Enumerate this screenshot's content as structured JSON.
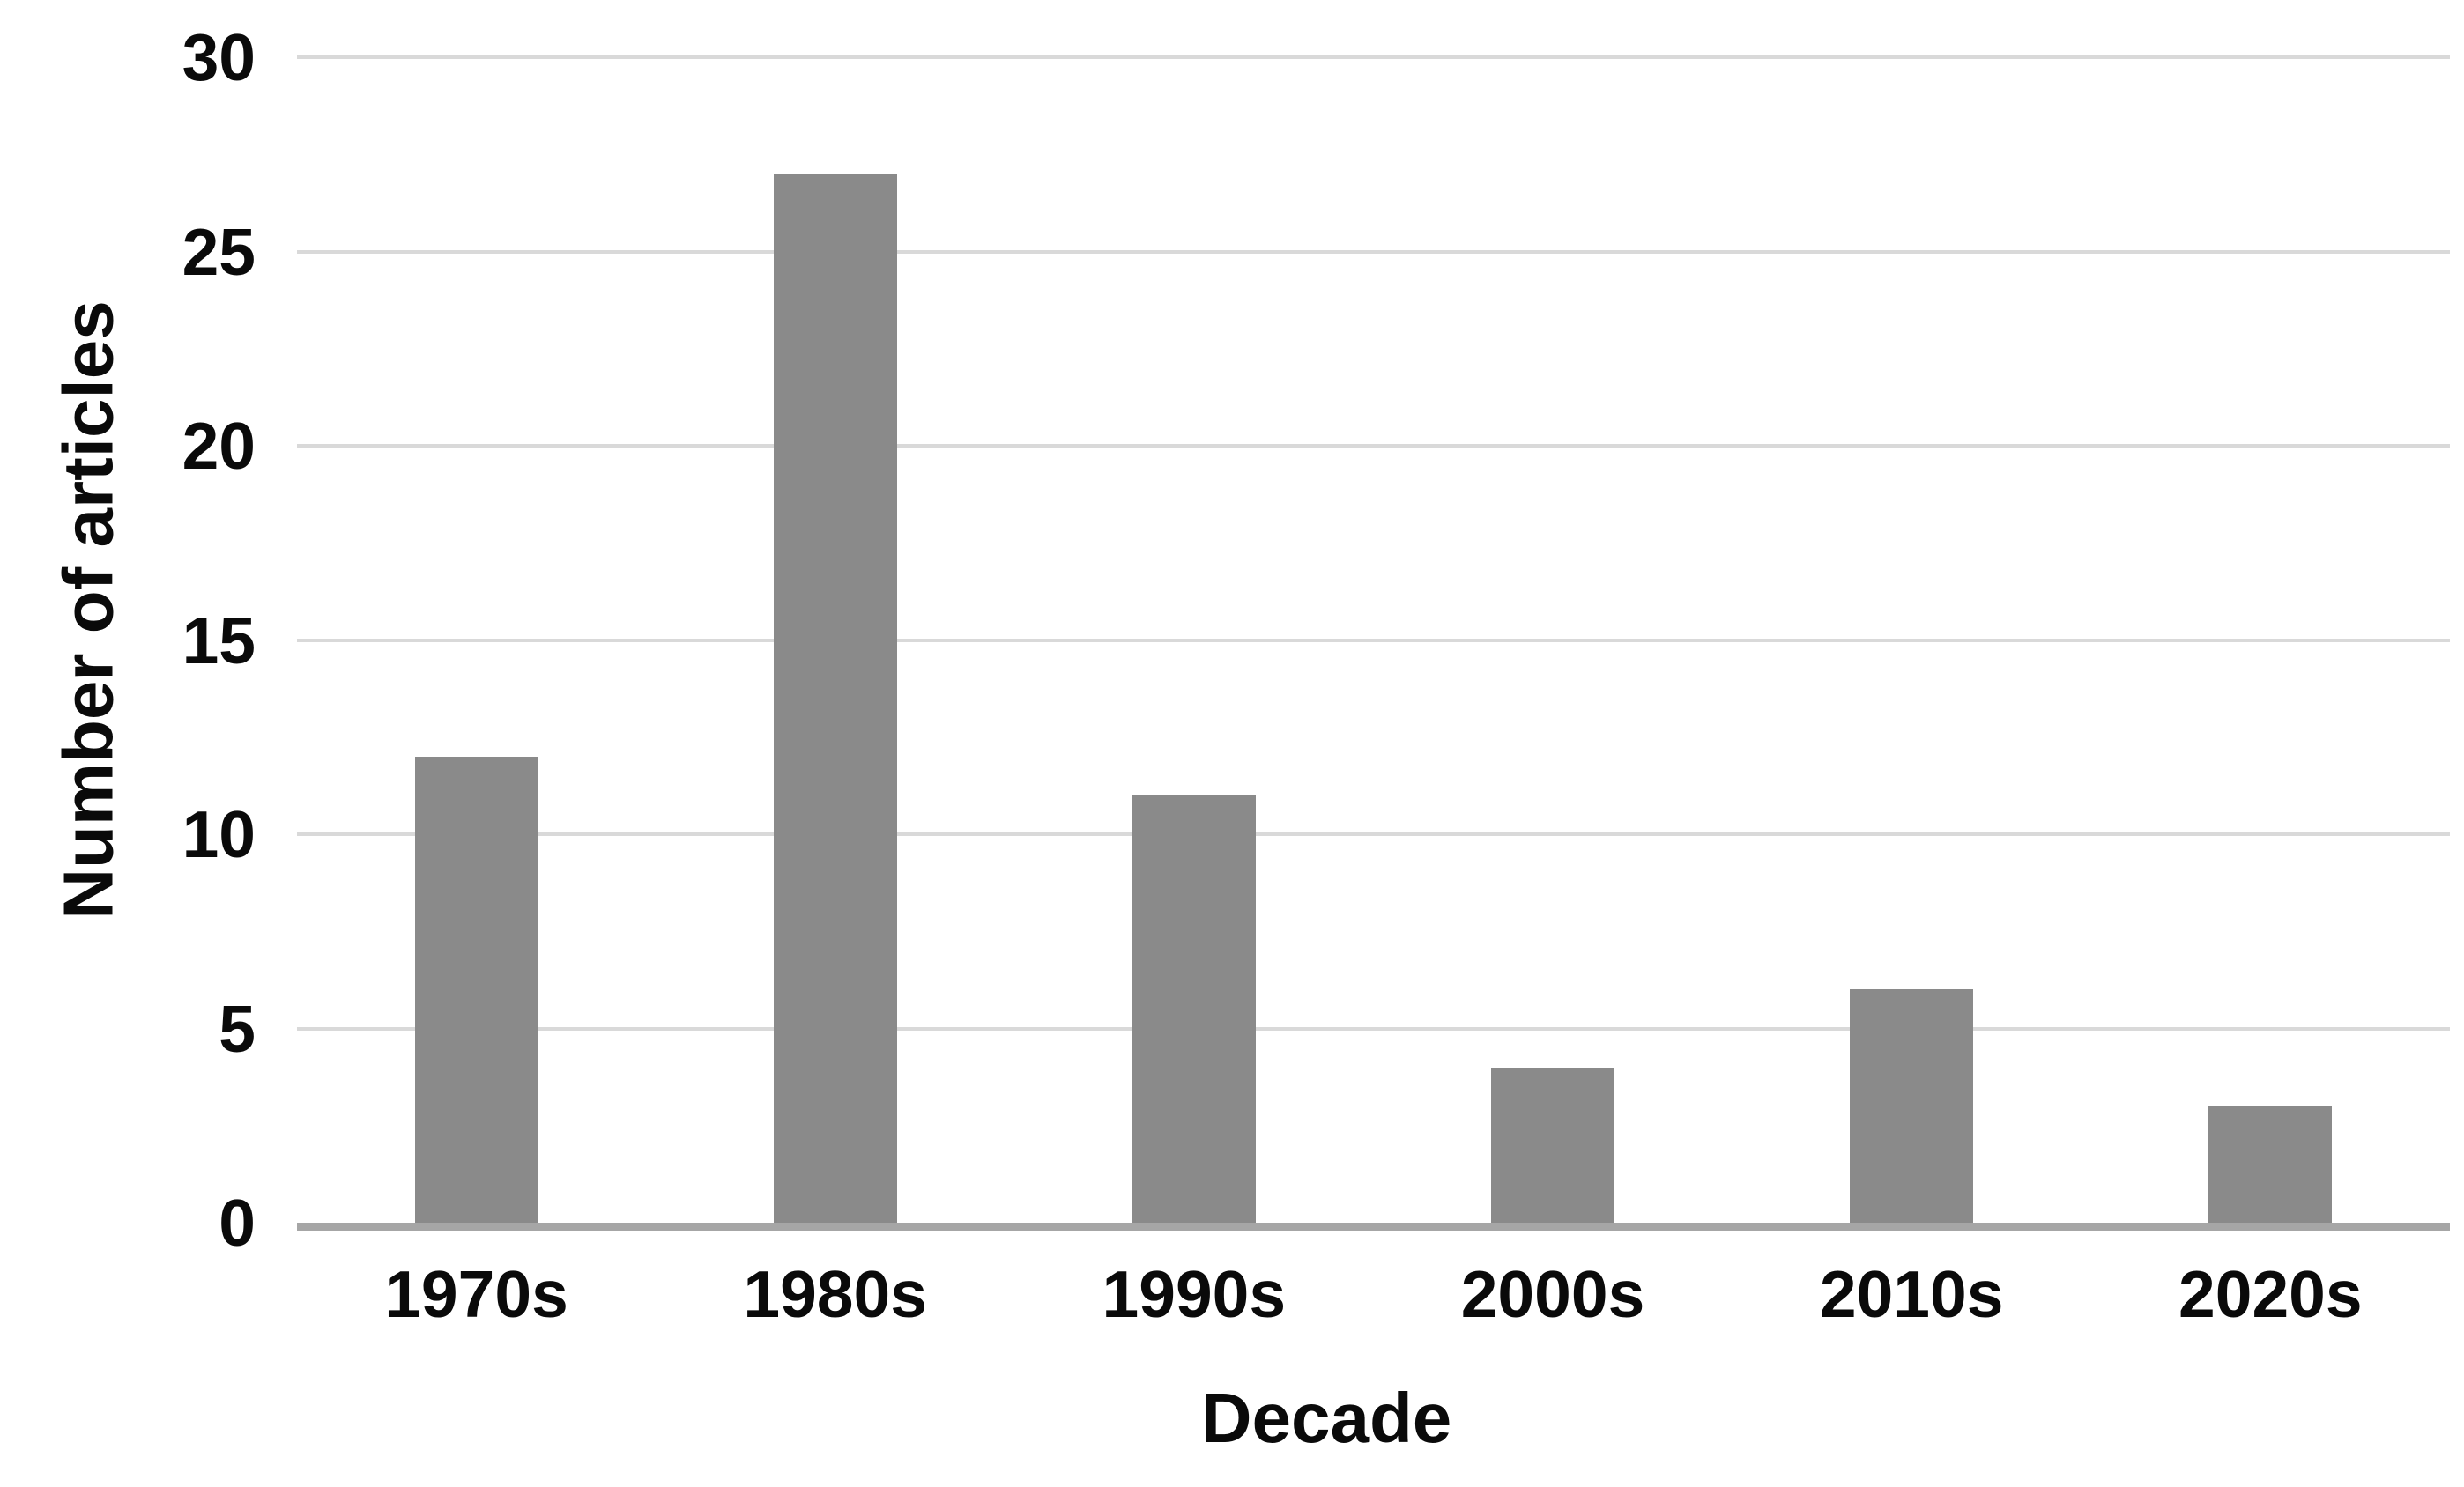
{
  "chart_data": {
    "type": "bar",
    "title": "",
    "categories": [
      "1970s",
      "1980s",
      "1990s",
      "2000s",
      "2010s",
      "2020s"
    ],
    "values": [
      12,
      27,
      11,
      4,
      6,
      3
    ],
    "xlabel": "Decade",
    "ylabel": "Number of articles",
    "ylim": [
      0,
      30
    ],
    "yticks": [
      0,
      5,
      10,
      15,
      20,
      25,
      30
    ],
    "grid": "horizontal",
    "legend": "none",
    "colors": {
      "bar": "#8a8a8a",
      "gridline": "#d9d9d9",
      "axis_line": "#a6a6a6",
      "text": "#0a0a0a",
      "background": "#ffffff"
    }
  }
}
